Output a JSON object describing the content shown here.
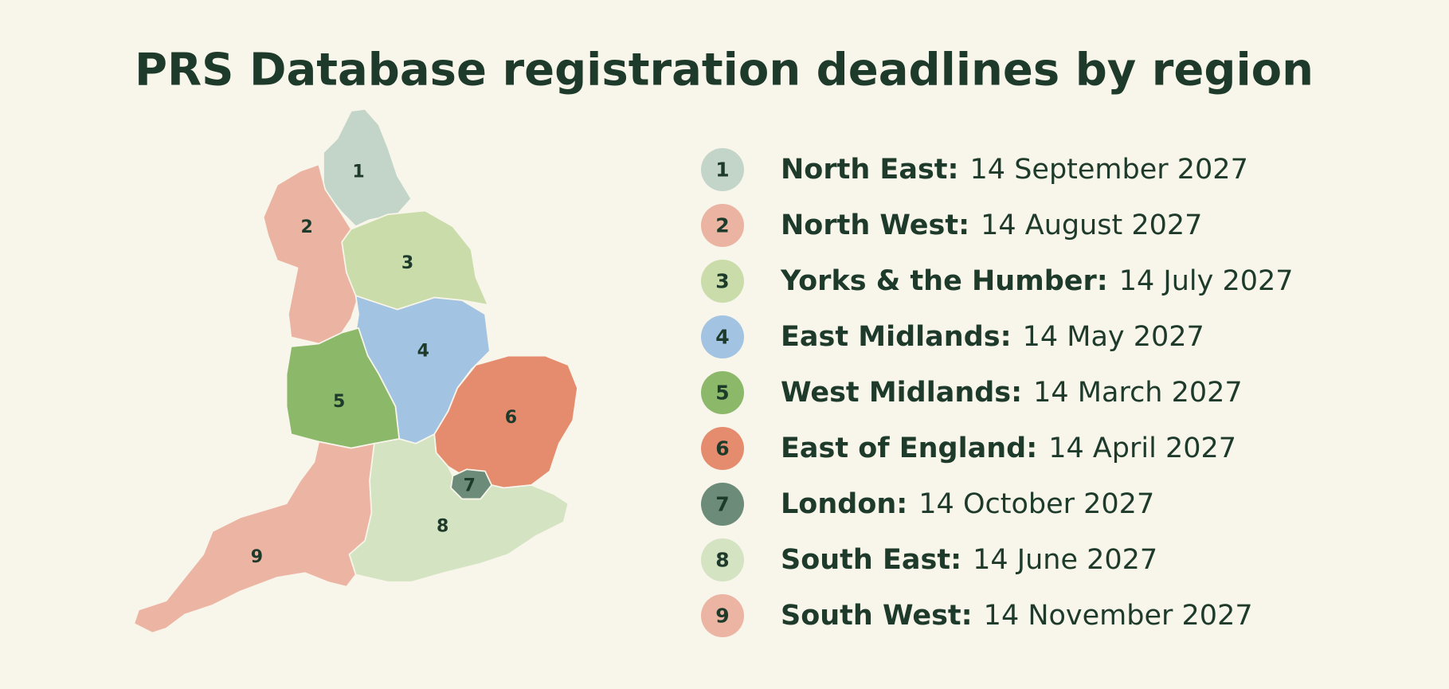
{
  "title": "PRS Database registration deadlines by region",
  "regions": [
    {
      "number": "1",
      "name": "North East:",
      "deadline": "14 September 2027",
      "color": "#c3d4c9"
    },
    {
      "number": "2",
      "name": "North West:",
      "deadline": "14 August 2027",
      "color": "#ebb3a1"
    },
    {
      "number": "3",
      "name": "Yorks & the Humber:",
      "deadline": "14 July 2027",
      "color": "#c9dca9"
    },
    {
      "number": "4",
      "name": "East Midlands:",
      "deadline": "14 May 2027",
      "color": "#a2c3e1"
    },
    {
      "number": "5",
      "name": "West Midlands:",
      "deadline": "14 March 2027",
      "color": "#8cb86a"
    },
    {
      "number": "6",
      "name": "East of England:",
      "deadline": "14 April 2027",
      "color": "#e58c6f"
    },
    {
      "number": "7",
      "name": "London:",
      "deadline": "14 October 2027",
      "color": "#6c8b79"
    },
    {
      "number": "8",
      "name": "South East:",
      "deadline": "14 June 2027",
      "color": "#d4e3c1"
    },
    {
      "number": "9",
      "name": "South West:",
      "deadline": "14 November 2027",
      "color": "#ecb4a3"
    }
  ]
}
